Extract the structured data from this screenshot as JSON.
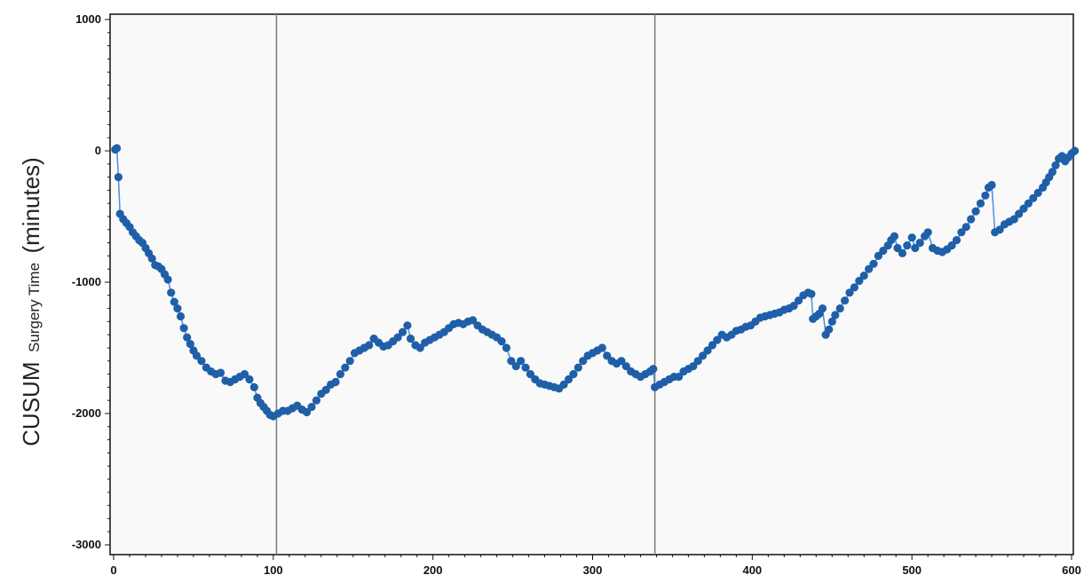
{
  "chart_data": {
    "type": "scatter",
    "title": "",
    "xlabel": "",
    "ylabel_main": "CUSUM",
    "ylabel_sub": "Surgery Time",
    "ylabel_unit": "(minutes)",
    "xlim": [
      0,
      600
    ],
    "ylim": [
      -3050,
      1020
    ],
    "x_ticks": [
      0,
      100,
      200,
      300,
      400,
      500,
      600
    ],
    "y_ticks": [
      1000,
      0,
      -1000,
      -2000,
      -3000
    ],
    "x_tick_labels": [
      "0",
      "100",
      "200",
      "300",
      "400",
      "500",
      "600"
    ],
    "y_tick_labels": [
      "1000",
      "0",
      "-1000",
      "-2000",
      "-3000"
    ],
    "vertical_lines": [
      102,
      339
    ],
    "grid": false,
    "colors": {
      "series": "#1f5fa8",
      "line": "#4a90d9",
      "background": "#f9f9f9",
      "vline": "#7a7a7a"
    },
    "series": [
      {
        "points": [
          [
            1,
            10
          ],
          [
            2,
            20
          ],
          [
            3,
            -200
          ],
          [
            4,
            -480
          ],
          [
            6,
            -520
          ],
          [
            8,
            -550
          ],
          [
            10,
            -580
          ],
          [
            12,
            -620
          ],
          [
            14,
            -650
          ],
          [
            16,
            -680
          ],
          [
            18,
            -700
          ],
          [
            20,
            -740
          ],
          [
            22,
            -780
          ],
          [
            24,
            -820
          ],
          [
            26,
            -870
          ],
          [
            28,
            -880
          ],
          [
            30,
            -900
          ],
          [
            32,
            -940
          ],
          [
            34,
            -980
          ],
          [
            36,
            -1080
          ],
          [
            38,
            -1150
          ],
          [
            40,
            -1200
          ],
          [
            42,
            -1260
          ],
          [
            44,
            -1350
          ],
          [
            46,
            -1420
          ],
          [
            48,
            -1470
          ],
          [
            50,
            -1520
          ],
          [
            52,
            -1560
          ],
          [
            55,
            -1600
          ],
          [
            58,
            -1650
          ],
          [
            61,
            -1680
          ],
          [
            64,
            -1700
          ],
          [
            67,
            -1690
          ],
          [
            70,
            -1750
          ],
          [
            73,
            -1760
          ],
          [
            76,
            -1740
          ],
          [
            79,
            -1720
          ],
          [
            82,
            -1700
          ],
          [
            85,
            -1740
          ],
          [
            88,
            -1800
          ],
          [
            90,
            -1880
          ],
          [
            92,
            -1920
          ],
          [
            94,
            -1950
          ],
          [
            96,
            -1980
          ],
          [
            98,
            -2010
          ],
          [
            100,
            -2020
          ],
          [
            103,
            -2000
          ],
          [
            106,
            -1980
          ],
          [
            109,
            -1980
          ],
          [
            112,
            -1960
          ],
          [
            115,
            -1940
          ],
          [
            118,
            -1970
          ],
          [
            121,
            -1990
          ],
          [
            124,
            -1950
          ],
          [
            127,
            -1900
          ],
          [
            130,
            -1850
          ],
          [
            133,
            -1820
          ],
          [
            136,
            -1780
          ],
          [
            139,
            -1760
          ],
          [
            142,
            -1700
          ],
          [
            145,
            -1650
          ],
          [
            148,
            -1600
          ],
          [
            151,
            -1540
          ],
          [
            154,
            -1520
          ],
          [
            157,
            -1500
          ],
          [
            160,
            -1480
          ],
          [
            163,
            -1430
          ],
          [
            166,
            -1460
          ],
          [
            169,
            -1490
          ],
          [
            172,
            -1480
          ],
          [
            175,
            -1450
          ],
          [
            178,
            -1420
          ],
          [
            181,
            -1380
          ],
          [
            184,
            -1330
          ],
          [
            186,
            -1430
          ],
          [
            189,
            -1480
          ],
          [
            192,
            -1500
          ],
          [
            195,
            -1460
          ],
          [
            198,
            -1440
          ],
          [
            201,
            -1420
          ],
          [
            204,
            -1400
          ],
          [
            207,
            -1380
          ],
          [
            210,
            -1350
          ],
          [
            213,
            -1320
          ],
          [
            216,
            -1310
          ],
          [
            219,
            -1320
          ],
          [
            222,
            -1300
          ],
          [
            225,
            -1290
          ],
          [
            228,
            -1330
          ],
          [
            231,
            -1360
          ],
          [
            234,
            -1380
          ],
          [
            237,
            -1400
          ],
          [
            240,
            -1420
          ],
          [
            243,
            -1450
          ],
          [
            246,
            -1500
          ],
          [
            249,
            -1600
          ],
          [
            252,
            -1640
          ],
          [
            255,
            -1600
          ],
          [
            258,
            -1650
          ],
          [
            261,
            -1700
          ],
          [
            264,
            -1740
          ],
          [
            267,
            -1770
          ],
          [
            270,
            -1780
          ],
          [
            273,
            -1790
          ],
          [
            276,
            -1800
          ],
          [
            279,
            -1810
          ],
          [
            282,
            -1780
          ],
          [
            285,
            -1740
          ],
          [
            288,
            -1700
          ],
          [
            291,
            -1650
          ],
          [
            294,
            -1600
          ],
          [
            297,
            -1560
          ],
          [
            300,
            -1540
          ],
          [
            303,
            -1520
          ],
          [
            306,
            -1500
          ],
          [
            309,
            -1560
          ],
          [
            312,
            -1600
          ],
          [
            315,
            -1620
          ],
          [
            318,
            -1600
          ],
          [
            321,
            -1640
          ],
          [
            324,
            -1680
          ],
          [
            327,
            -1700
          ],
          [
            330,
            -1720
          ],
          [
            333,
            -1700
          ],
          [
            336,
            -1680
          ],
          [
            338,
            -1660
          ],
          [
            339,
            -1800
          ],
          [
            342,
            -1780
          ],
          [
            345,
            -1760
          ],
          [
            348,
            -1740
          ],
          [
            351,
            -1720
          ],
          [
            354,
            -1720
          ],
          [
            357,
            -1680
          ],
          [
            360,
            -1660
          ],
          [
            363,
            -1640
          ],
          [
            366,
            -1600
          ],
          [
            369,
            -1560
          ],
          [
            372,
            -1520
          ],
          [
            375,
            -1480
          ],
          [
            378,
            -1440
          ],
          [
            381,
            -1400
          ],
          [
            384,
            -1420
          ],
          [
            387,
            -1400
          ],
          [
            390,
            -1370
          ],
          [
            393,
            -1360
          ],
          [
            396,
            -1340
          ],
          [
            399,
            -1330
          ],
          [
            402,
            -1300
          ],
          [
            405,
            -1270
          ],
          [
            408,
            -1260
          ],
          [
            411,
            -1250
          ],
          [
            414,
            -1240
          ],
          [
            417,
            -1230
          ],
          [
            420,
            -1210
          ],
          [
            423,
            -1200
          ],
          [
            426,
            -1180
          ],
          [
            429,
            -1140
          ],
          [
            432,
            -1100
          ],
          [
            435,
            -1080
          ],
          [
            437,
            -1090
          ],
          [
            438,
            -1280
          ],
          [
            440,
            -1260
          ],
          [
            442,
            -1240
          ],
          [
            444,
            -1200
          ],
          [
            446,
            -1400
          ],
          [
            448,
            -1360
          ],
          [
            450,
            -1300
          ],
          [
            452,
            -1250
          ],
          [
            455,
            -1200
          ],
          [
            458,
            -1140
          ],
          [
            461,
            -1080
          ],
          [
            464,
            -1040
          ],
          [
            467,
            -990
          ],
          [
            470,
            -950
          ],
          [
            473,
            -900
          ],
          [
            476,
            -860
          ],
          [
            479,
            -800
          ],
          [
            482,
            -760
          ],
          [
            485,
            -720
          ],
          [
            487,
            -680
          ],
          [
            489,
            -650
          ],
          [
            491,
            -740
          ],
          [
            494,
            -780
          ],
          [
            497,
            -720
          ],
          [
            500,
            -660
          ],
          [
            502,
            -740
          ],
          [
            505,
            -700
          ],
          [
            508,
            -650
          ],
          [
            510,
            -620
          ],
          [
            513,
            -740
          ],
          [
            516,
            -760
          ],
          [
            519,
            -770
          ],
          [
            522,
            -750
          ],
          [
            525,
            -720
          ],
          [
            528,
            -680
          ],
          [
            531,
            -620
          ],
          [
            534,
            -580
          ],
          [
            537,
            -520
          ],
          [
            540,
            -460
          ],
          [
            543,
            -400
          ],
          [
            546,
            -340
          ],
          [
            548,
            -280
          ],
          [
            550,
            -260
          ],
          [
            552,
            -620
          ],
          [
            555,
            -600
          ],
          [
            558,
            -560
          ],
          [
            561,
            -540
          ],
          [
            564,
            -520
          ],
          [
            567,
            -480
          ],
          [
            570,
            -440
          ],
          [
            573,
            -400
          ],
          [
            576,
            -360
          ],
          [
            579,
            -320
          ],
          [
            582,
            -280
          ],
          [
            584,
            -240
          ],
          [
            586,
            -200
          ],
          [
            588,
            -160
          ],
          [
            590,
            -110
          ],
          [
            592,
            -60
          ],
          [
            594,
            -40
          ],
          [
            596,
            -80
          ],
          [
            598,
            -50
          ],
          [
            600,
            -20
          ],
          [
            602,
            0
          ]
        ]
      }
    ]
  }
}
